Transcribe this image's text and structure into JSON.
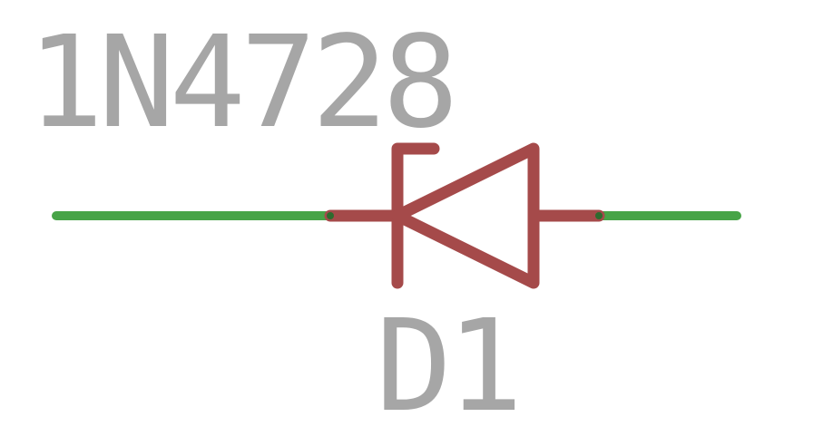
{
  "component": {
    "value": "1N4728",
    "designator": "D1",
    "symbol_icon": "zener-diode-icon"
  },
  "colors": {
    "background": "#ffffff",
    "label_text": "#a6a6a6",
    "wire": "#47a447",
    "symbol": "#a54a4a",
    "pin_junction": "#2e6b2e"
  }
}
